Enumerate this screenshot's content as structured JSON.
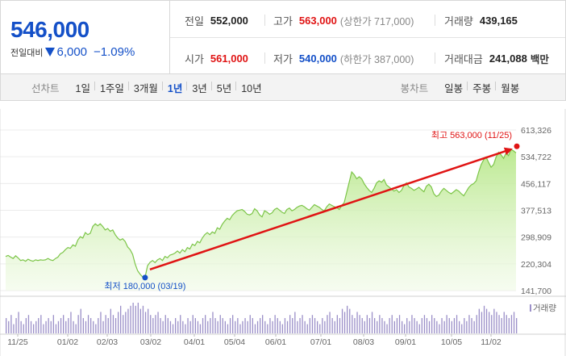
{
  "summary": {
    "price": "546,000",
    "change_label": "전일대비",
    "change_amount": "6,000",
    "change_pct": "−1.09%",
    "prev_close_label": "전일",
    "prev_close": "552,000",
    "open_label": "시가",
    "open": "561,000",
    "high_label": "고가",
    "high": "563,000",
    "upper_limit": "(상한가 717,000)",
    "low_label": "저가",
    "low": "540,000",
    "lower_limit": "(하한가 387,000)",
    "volume_label": "거래량",
    "volume": "439,165",
    "amount_label": "거래대금",
    "amount": "241,088",
    "amount_unit": "백만"
  },
  "line_chart_tabs": {
    "label": "선차트",
    "items": [
      "1일",
      "1주일",
      "3개월",
      "1년",
      "3년",
      "5년",
      "10년"
    ],
    "active": "1년"
  },
  "candle_chart_tabs": {
    "label": "봉차트",
    "items": [
      "일봉",
      "주봉",
      "월봉"
    ]
  },
  "colors": {
    "up": "#e01414",
    "down": "#1450c8",
    "line": "#7cc548",
    "volume": "#9b8fc8"
  },
  "chart_data": {
    "type": "area",
    "y_ticks": [
      "613,326",
      "534,722",
      "456,117",
      "377,513",
      "298,909",
      "220,304",
      "141,700"
    ],
    "ylim": [
      141700,
      613326
    ],
    "x_ticks": [
      "11/25",
      "01/02",
      "02/03",
      "03/02",
      "04/01",
      "05/04",
      "06/01",
      "07/01",
      "08/03",
      "09/01",
      "10/05",
      "11/02"
    ],
    "volume_label": "거래량",
    "max_annotation": {
      "label": "최고 563,000 (11/25)",
      "value": 563000
    },
    "min_annotation": {
      "label": "최저 180,000 (03/19)",
      "value": 180000
    },
    "series": [
      {
        "values": [
          242000,
          245000,
          240000,
          236000,
          244000,
          238000,
          230000,
          232000,
          228000,
          234000,
          230000,
          228000,
          232000,
          230000,
          232000,
          231000,
          232000,
          236000,
          232000,
          230000,
          236000,
          240000,
          250000,
          254000,
          262000,
          268000,
          266000,
          276000,
          272000,
          290000,
          300000,
          296000,
          312000,
          306000,
          310000,
          330000,
          338000,
          332000,
          338000,
          330000,
          320000,
          324000,
          316000,
          320000,
          306000,
          296000,
          290000,
          294000,
          286000,
          270000,
          262000,
          248000,
          220000,
          200000,
          190000,
          182000,
          180000,
          215000,
          225000,
          230000,
          224000,
          232000,
          236000,
          230000,
          242000,
          238000,
          246000,
          248000,
          252000,
          258000,
          252000,
          262000,
          256000,
          268000,
          264000,
          278000,
          274000,
          286000,
          282000,
          296000,
          306000,
          312000,
          306000,
          314000,
          310000,
          326000,
          322000,
          336000,
          346000,
          354000,
          350000,
          362000,
          370000,
          376000,
          378000,
          380000,
          374000,
          366000,
          364000,
          368000,
          382000,
          376000,
          364000,
          358000,
          376000,
          372000,
          366000,
          370000,
          380000,
          384000,
          378000,
          372000,
          368000,
          380000,
          384000,
          376000,
          380000,
          386000,
          390000,
          392000,
          388000,
          382000,
          378000,
          386000,
          394000,
          390000,
          386000,
          380000,
          376000,
          388000,
          396000,
          392000,
          388000,
          386000,
          380000,
          392000,
          400000,
          430000,
          460000,
          490000,
          482000,
          470000,
          476000,
          470000,
          456000,
          445000,
          436000,
          430000,
          442000,
          458000,
          464000,
          460000,
          468000,
          452000,
          446000,
          440000,
          434000,
          438000,
          430000,
          436000,
          450000,
          458000,
          446000,
          442000,
          436000,
          440000,
          445000,
          438000,
          432000,
          448000,
          454000,
          446000,
          426000,
          418000,
          422000,
          434000,
          442000,
          436000,
          430000,
          426000,
          432000,
          438000,
          434000,
          426000,
          420000,
          432000,
          444000,
          452000,
          456000,
          464000,
          490000,
          512000,
          526000,
          534000,
          518000,
          504000,
          512000,
          534000,
          548000,
          540000,
          530000,
          546000,
          538000,
          556000,
          552000,
          546000
        ]
      }
    ],
    "volume": [
      0.5,
      0.4,
      0.6,
      0.3,
      0.5,
      0.7,
      0.4,
      0.3,
      0.5,
      0.6,
      0.4,
      0.3,
      0.4,
      0.5,
      0.6,
      0.3,
      0.4,
      0.5,
      0.4,
      0.6,
      0.3,
      0.4,
      0.5,
      0.6,
      0.4,
      0.5,
      0.7,
      0.4,
      0.3,
      0.6,
      0.8,
      0.5,
      0.4,
      0.6,
      0.5,
      0.4,
      0.3,
      0.5,
      0.7,
      0.4,
      0.6,
      0.5,
      0.8,
      0.6,
      0.5,
      0.7,
      0.9,
      0.6,
      0.7,
      0.8,
      0.9,
      1.0,
      0.9,
      1.0,
      0.8,
      0.9,
      0.7,
      0.8,
      0.6,
      0.5,
      0.6,
      0.7,
      0.5,
      0.4,
      0.6,
      0.5,
      0.4,
      0.3,
      0.5,
      0.4,
      0.6,
      0.4,
      0.3,
      0.5,
      0.4,
      0.6,
      0.5,
      0.4,
      0.3,
      0.5,
      0.6,
      0.4,
      0.5,
      0.7,
      0.5,
      0.4,
      0.6,
      0.5,
      0.4,
      0.3,
      0.5,
      0.6,
      0.4,
      0.5,
      0.3,
      0.4,
      0.5,
      0.4,
      0.6,
      0.5,
      0.3,
      0.4,
      0.5,
      0.6,
      0.4,
      0.3,
      0.5,
      0.4,
      0.6,
      0.5,
      0.4,
      0.3,
      0.5,
      0.4,
      0.6,
      0.5,
      0.7,
      0.4,
      0.5,
      0.6,
      0.4,
      0.3,
      0.5,
      0.6,
      0.5,
      0.4,
      0.3,
      0.5,
      0.4,
      0.6,
      0.7,
      0.5,
      0.4,
      0.6,
      0.5,
      0.8,
      0.7,
      0.9,
      0.8,
      0.6,
      0.5,
      0.7,
      0.6,
      0.5,
      0.4,
      0.6,
      0.5,
      0.7,
      0.5,
      0.4,
      0.6,
      0.5,
      0.4,
      0.3,
      0.5,
      0.6,
      0.4,
      0.5,
      0.6,
      0.4,
      0.3,
      0.5,
      0.4,
      0.6,
      0.5,
      0.4,
      0.3,
      0.5,
      0.6,
      0.5,
      0.4,
      0.6,
      0.5,
      0.4,
      0.3,
      0.5,
      0.4,
      0.6,
      0.5,
      0.4,
      0.5,
      0.6,
      0.4,
      0.3,
      0.5,
      0.4,
      0.6,
      0.5,
      0.4,
      0.6,
      0.8,
      0.7,
      0.9,
      0.8,
      0.7,
      0.6,
      0.8,
      0.7,
      0.6,
      0.5,
      0.7,
      0.6,
      0.5,
      0.6,
      0.7,
      0.5
    ]
  }
}
